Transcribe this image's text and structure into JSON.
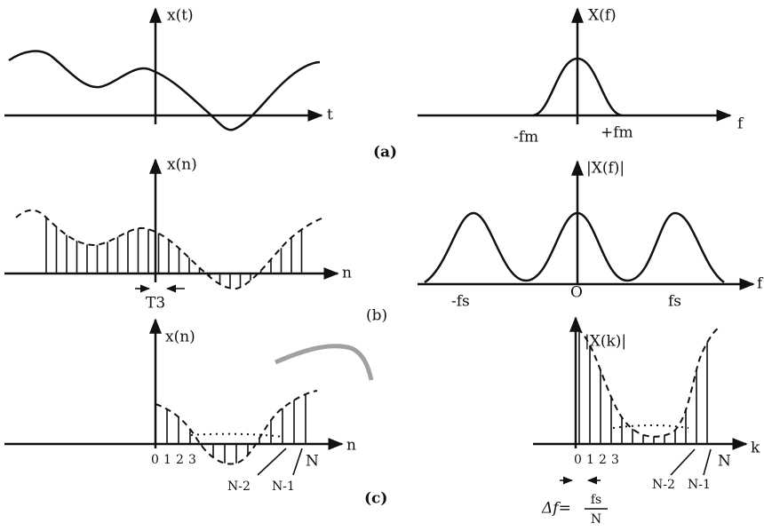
{
  "panels": [
    {
      "label": "(a)",
      "left": {
        "y_label": "x(t)",
        "x_label": "t"
      },
      "right": {
        "y_label": "X(f)",
        "x_label": "f",
        "ticks": [
          "-fm",
          "+fm"
        ]
      }
    },
    {
      "label": "(b)",
      "left": {
        "y_label": "x(n)",
        "x_label": "n",
        "spacing": "T3"
      },
      "right": {
        "y_label": "|X(f)|",
        "x_label": "f",
        "ticks": [
          "-fs",
          "O",
          "fs"
        ]
      }
    },
    {
      "label": "(c)",
      "left": {
        "y_label": "x(n)",
        "x_label": "n",
        "ticks": [
          "0",
          "1",
          "2",
          "3",
          "N-2",
          "N-1",
          "N"
        ]
      },
      "right": {
        "y_label": "|X(k)|",
        "x_label": "k",
        "ticks": [
          "0",
          "1",
          "2",
          "3",
          "N-2",
          "N-1",
          "N"
        ],
        "resolution": {
          "lhs": "Δf=",
          "numerator": "fs",
          "denominator": "N"
        }
      }
    }
  ]
}
